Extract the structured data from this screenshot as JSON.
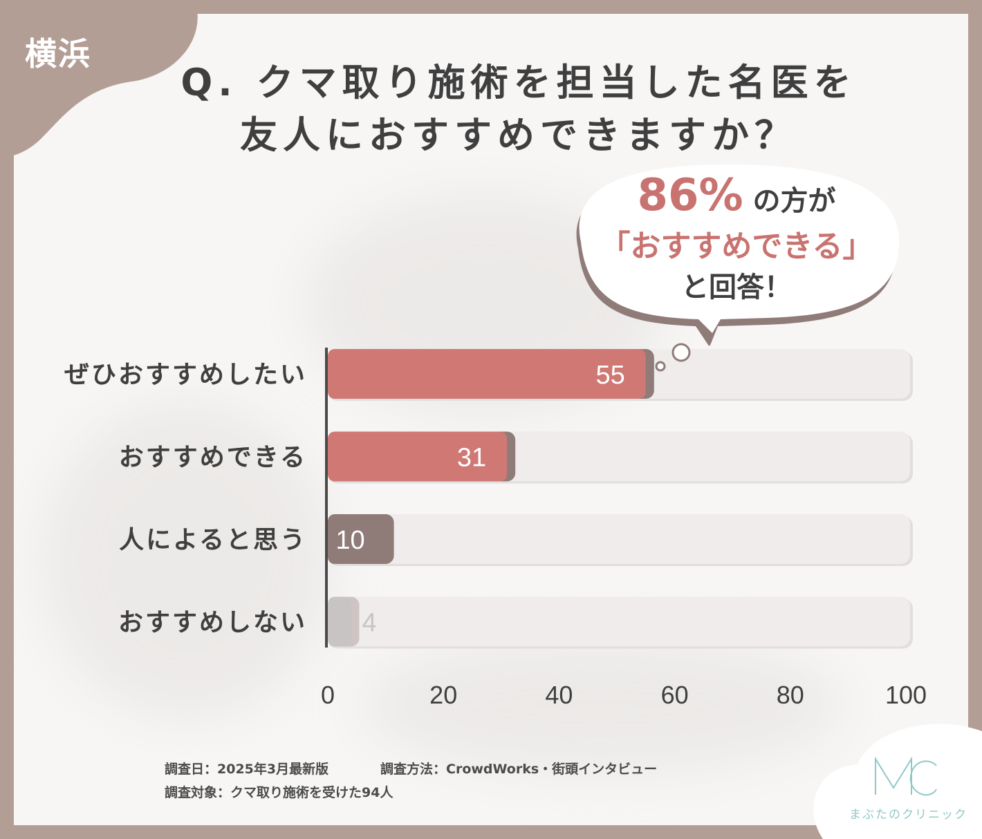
{
  "region_label": "横浜",
  "title_line1": "Q. クマ取り施術を担当した名医を",
  "title_line2": "友人におすすめできますか？",
  "callout": {
    "percent": "86%",
    "line1_suffix": " の方が",
    "line2": "「おすすめできる」",
    "line3": "と回答！"
  },
  "chart_data": {
    "type": "bar",
    "orientation": "horizontal",
    "categories": [
      "ぜひおすすめしたい",
      "おすすめできる",
      "人によると思う",
      "おすすめしない"
    ],
    "values": [
      55,
      31,
      10,
      4
    ],
    "value_labels": [
      "55",
      "31",
      "10",
      "4"
    ],
    "xlim": [
      0,
      100
    ],
    "xticks": [
      "0",
      "20",
      "40",
      "60",
      "80",
      "100"
    ],
    "colors": [
      "#cf7874",
      "#cf7874",
      "#8f7b78",
      "#c8c4c3"
    ],
    "track_color": "#efeceb",
    "grid": false
  },
  "footnotes": {
    "survey_date": "調査日：2025年3月最新版",
    "survey_method": "調査方法：CrowdWorks・街頭インタビュー",
    "survey_target": "調査対象：クマ取り施術を受けた94人"
  },
  "logo": {
    "mark": "MC",
    "name": "まぶたのクリニック",
    "color": "#8ec9c6"
  }
}
